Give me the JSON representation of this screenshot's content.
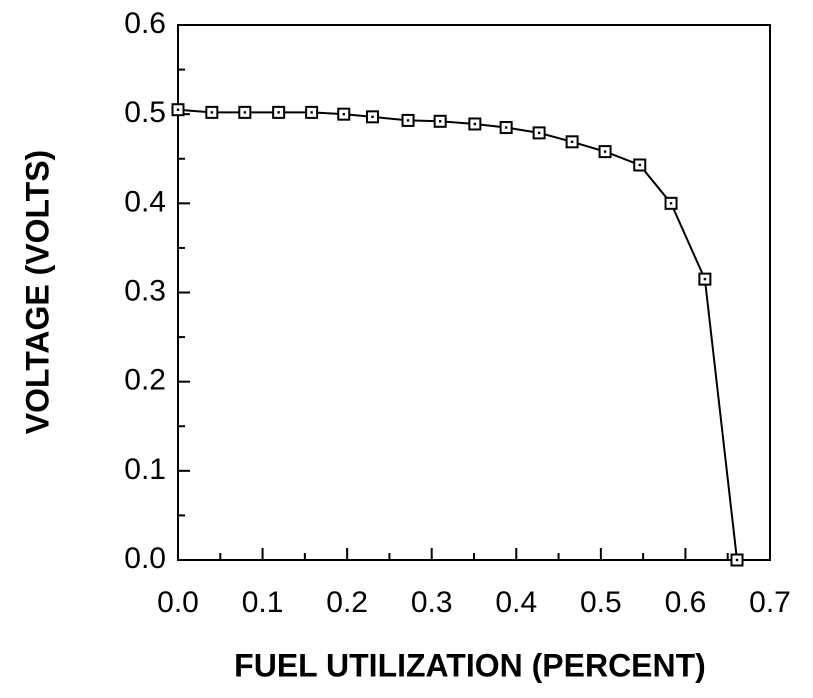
{
  "chart_data": {
    "type": "line",
    "xlabel": "FUEL UTILIZATION (PERCENT)",
    "ylabel": "VOLTAGE (VOLTS)",
    "x": [
      0.0,
      0.04,
      0.079,
      0.119,
      0.158,
      0.196,
      0.23,
      0.272,
      0.31,
      0.351,
      0.388,
      0.427,
      0.466,
      0.505,
      0.546,
      0.583,
      0.623,
      0.661
    ],
    "series": [
      {
        "color": "#000000",
        "values": [
          0.505,
          0.502,
          0.502,
          0.502,
          0.502,
          0.5,
          0.497,
          0.493,
          0.492,
          0.489,
          0.485,
          0.479,
          0.469,
          0.458,
          0.443,
          0.4,
          0.315,
          0.0
        ]
      }
    ],
    "xlim": [
      0,
      0.7
    ],
    "ylim": [
      0,
      0.6
    ],
    "xticks": [
      {
        "value": 0,
        "label": "0.0"
      },
      0.1,
      0.2,
      0.3,
      0.4,
      0.5,
      0.6,
      0.7
    ],
    "yticks": [
      {
        "value": 0,
        "label": "0.0"
      },
      0.1,
      0.2,
      0.3,
      0.4,
      0.5,
      0.6
    ],
    "xminorticks": [
      0.05,
      0.15,
      0.25,
      0.35,
      0.45,
      0.55,
      0.65
    ],
    "yminorticks": [
      0.05,
      0.15,
      0.25,
      0.35,
      0.45,
      0.55
    ],
    "grid": false
  }
}
